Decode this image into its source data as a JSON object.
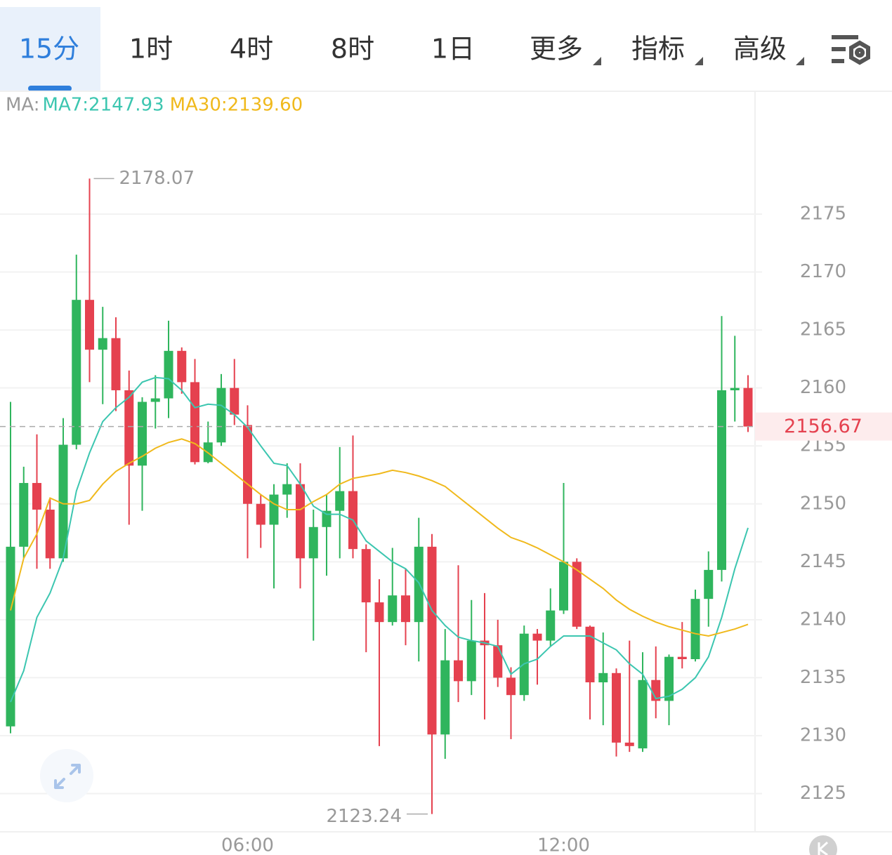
{
  "tabs": [
    "15分",
    "1时",
    "4时",
    "8时",
    "1日",
    "更多",
    "指标",
    "高级"
  ],
  "chart_data": {
    "type": "candlestick",
    "legend_prefix": "MA:",
    "categories": [
      null,
      null,
      null,
      null,
      null,
      null,
      null,
      null,
      null,
      null,
      null,
      null,
      null,
      null,
      null,
      null,
      null,
      null,
      "06:00",
      null,
      null,
      null,
      null,
      null,
      null,
      null,
      null,
      null,
      null,
      null,
      null,
      null,
      null,
      null,
      null,
      null,
      null,
      null,
      null,
      null,
      null,
      null,
      "12:00",
      null,
      null,
      null,
      null,
      null,
      null,
      null,
      null,
      null,
      null,
      null,
      null,
      null,
      null
    ],
    "open": [
      2130.8,
      2146.3,
      2151.8,
      2149.5,
      2145.3,
      2155.1,
      2167.6,
      2163.3,
      2164.3,
      2159.8,
      2153.3,
      2158.8,
      2159.1,
      2163.2,
      2160.5,
      2153.6,
      2155.3,
      2160.0,
      2156.8,
      2150.0,
      2148.2,
      2150.8,
      2151.7,
      2145.3,
      2148.0,
      2149.4,
      2151.1,
      2146.1,
      2141.5,
      2139.8,
      2142.1,
      2139.8,
      2146.3,
      2130.1,
      2136.5,
      2134.7,
      2138.2,
      2137.8,
      2135.0,
      2133.5,
      2138.8,
      2138.2,
      2140.8,
      2145.0,
      2139.4,
      2134.6,
      2135.4,
      2129.4,
      2128.9,
      2134.8,
      2133.0,
      2136.8,
      2136.6,
      2141.8,
      2144.3,
      2159.8,
      2160.0
    ],
    "high": [
      2158.8,
      2153.2,
      2156.0,
      2150.4,
      2157.4,
      2171.5,
      2178.07,
      2167.0,
      2166.1,
      2161.5,
      2159.2,
      2161.1,
      2165.8,
      2163.5,
      2162.5,
      2157.1,
      2161.2,
      2162.5,
      2158.5,
      2150.8,
      2151.7,
      2153.5,
      2153.5,
      2149.5,
      2150.8,
      2154.9,
      2155.9,
      2146.5,
      2143.5,
      2146.2,
      2144.4,
      2148.8,
      2147.4,
      2139.2,
      2144.7,
      2141.7,
      2142.3,
      2140.0,
      2135.9,
      2139.5,
      2139.2,
      2142.7,
      2151.8,
      2145.3,
      2139.5,
      2138.9,
      2135.8,
      2138.2,
      2137.2,
      2137.7,
      2137.0,
      2139.8,
      2142.6,
      2145.9,
      2166.2,
      2164.5,
      2161.1
    ],
    "low": [
      2130.2,
      2145.3,
      2144.4,
      2144.4,
      2145.0,
      2154.7,
      2160.5,
      2158.6,
      2158.0,
      2148.2,
      2149.4,
      2156.5,
      2157.4,
      2159.5,
      2153.4,
      2153.5,
      2155.0,
      2156.8,
      2145.3,
      2146.2,
      2142.7,
      2148.8,
      2142.7,
      2138.2,
      2143.8,
      2145.3,
      2145.3,
      2137.2,
      2129.1,
      2139.5,
      2137.8,
      2136.4,
      2123.24,
      2128.0,
      2132.9,
      2133.5,
      2131.4,
      2134.2,
      2129.7,
      2133.0,
      2134.4,
      2137.7,
      2140.5,
      2139.2,
      2131.4,
      2130.9,
      2128.2,
      2128.6,
      2128.6,
      2131.5,
      2130.9,
      2135.8,
      2136.4,
      2139.4,
      2143.3,
      2157.1,
      2156.2
    ],
    "close": [
      2146.3,
      2151.8,
      2149.5,
      2145.3,
      2155.1,
      2167.6,
      2163.3,
      2164.3,
      2159.8,
      2153.3,
      2158.8,
      2159.1,
      2163.2,
      2160.5,
      2153.6,
      2155.3,
      2160.0,
      2157.7,
      2150.0,
      2148.2,
      2150.8,
      2151.7,
      2145.3,
      2148.0,
      2149.4,
      2151.1,
      2146.1,
      2141.5,
      2139.8,
      2142.1,
      2139.8,
      2146.3,
      2130.1,
      2136.5,
      2134.7,
      2138.2,
      2137.8,
      2135.0,
      2133.5,
      2138.8,
      2138.2,
      2140.8,
      2145.0,
      2139.4,
      2134.6,
      2135.4,
      2129.4,
      2129.1,
      2134.8,
      2133.0,
      2136.8,
      2136.6,
      2141.8,
      2144.3,
      2159.8,
      2160.0,
      2156.67
    ],
    "up_color": "#2fb55d",
    "down_color": "#e5414f",
    "series": [
      {
        "name": "MA7:2147.93",
        "color": "#3cc6b0",
        "values": [
          2132.9,
          2135.6,
          2140.2,
          2142.3,
          2145.3,
          2151.1,
          2154.4,
          2157.1,
          2158.3,
          2159.2,
          2160.5,
          2160.9,
          2160.8,
          2159.8,
          2158.3,
          2158.6,
          2158.5,
          2157.7,
          2156.6,
          2155.0,
          2153.5,
          2153.3,
          2151.7,
          2149.8,
          2149.1,
          2149.1,
          2148.6,
          2146.8,
          2145.9,
          2145.0,
          2144.4,
          2143.2,
          2140.8,
          2139.5,
          2138.5,
          2138.2,
          2138.0,
          2137.7,
          2135.3,
          2136.2,
          2136.6,
          2137.7,
          2138.6,
          2138.6,
          2138.6,
          2138.0,
          2137.4,
          2136.2,
          2135.3,
          2133.2,
          2133.4,
          2134.0,
          2135.0,
          2136.8,
          2140.2,
          2144.4,
          2147.93
        ]
      },
      {
        "name": "MA30:2139.60",
        "color": "#f0b91c",
        "values": [
          2140.8,
          2145.3,
          2147.4,
          2150.5,
          2150.0,
          2150.0,
          2150.3,
          2151.7,
          2152.8,
          2153.5,
          2154.1,
          2154.8,
          2155.3,
          2155.6,
          2155.2,
          2154.4,
          2153.5,
          2152.6,
          2151.7,
          2150.8,
          2150.0,
          2149.5,
          2149.5,
          2150.2,
          2150.8,
          2151.7,
          2152.2,
          2152.4,
          2152.6,
          2152.9,
          2152.7,
          2152.4,
          2152.0,
          2151.5,
          2150.6,
          2149.7,
          2148.8,
          2147.9,
          2147.1,
          2146.7,
          2146.2,
          2145.6,
          2145.0,
          2144.3,
          2143.5,
          2142.7,
          2141.7,
          2140.9,
          2140.3,
          2139.8,
          2139.4,
          2139.1,
          2138.8,
          2138.6,
          2138.9,
          2139.2,
          2139.6
        ]
      }
    ],
    "high_label": 2178.07,
    "low_label": 2123.24,
    "last_price": 2156.67,
    "ylim": [
      2121.7,
      2185.6
    ],
    "yticks": [
      2125,
      2130,
      2135,
      2140,
      2145,
      2150,
      2155,
      2160,
      2165,
      2170,
      2175
    ],
    "grid": true
  }
}
